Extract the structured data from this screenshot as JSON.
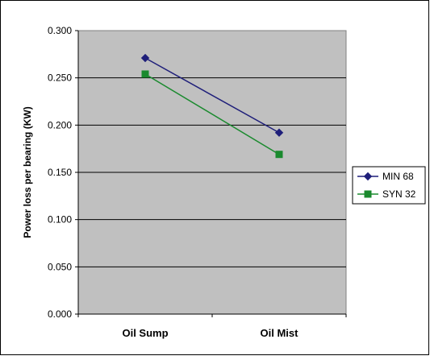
{
  "chart_data": {
    "type": "line",
    "title": "",
    "xlabel": "",
    "ylabel": "Power loss per bearing (KW)",
    "categories": [
      "Oil Sump",
      "Oil Mist"
    ],
    "ylim": [
      0,
      0.3
    ],
    "yticks": [
      "0.000",
      "0.050",
      "0.100",
      "0.150",
      "0.200",
      "0.250",
      "0.300"
    ],
    "ytick_values": [
      0,
      0.05,
      0.1,
      0.15,
      0.2,
      0.25,
      0.3
    ],
    "grid": true,
    "legend_position": "right",
    "series": [
      {
        "name": "MIN 68",
        "values": [
          0.271,
          0.192
        ],
        "color": "#1f1f7a",
        "marker": "diamond"
      },
      {
        "name": "SYN 32",
        "values": [
          0.254,
          0.169
        ],
        "color": "#1a8a2e",
        "marker": "square"
      }
    ],
    "plot_background": "#c0c0c0"
  }
}
